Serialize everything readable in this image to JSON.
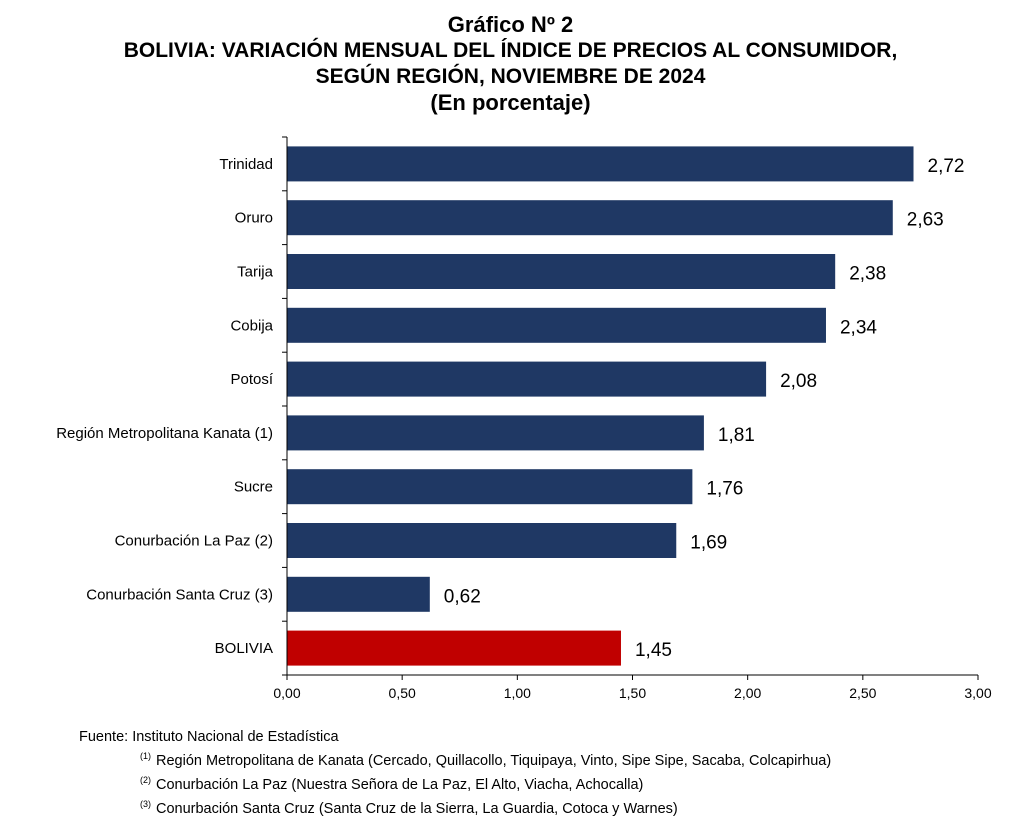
{
  "title": {
    "line1": "Gráfico Nº 2",
    "line2": "BOLIVIA: VARIACIÓN MENSUAL DEL ÍNDICE DE PRECIOS AL CONSUMIDOR,",
    "line3": "SEGÚN REGIÓN, NOVIEMBRE DE 2024",
    "line4": "(En porcentaje)"
  },
  "colors": {
    "bar": "#1f3864",
    "highlight": "#c00000"
  },
  "chart_data": {
    "type": "bar",
    "orientation": "horizontal",
    "categories": [
      "Trinidad",
      "Oruro",
      "Tarija",
      "Cobija",
      "Potosí",
      "Región Metropolitana Kanata (1)",
      "Sucre",
      "Conurbación La Paz (2)",
      "Conurbación Santa Cruz (3)",
      "BOLIVIA"
    ],
    "values": [
      2.72,
      2.63,
      2.38,
      2.34,
      2.08,
      1.81,
      1.76,
      1.69,
      0.62,
      1.45
    ],
    "value_labels": [
      "2,72",
      "2,63",
      "2,38",
      "2,34",
      "2,08",
      "1,81",
      "1,76",
      "1,69",
      "0,62",
      "1,45"
    ],
    "highlight_category": "BOLIVIA",
    "xlim": [
      0,
      3
    ],
    "x_ticks": [
      0,
      0.5,
      1,
      1.5,
      2,
      2.5,
      3
    ],
    "x_tick_labels": [
      "0,00",
      "0,50",
      "1,00",
      "1,50",
      "2,00",
      "2,50",
      "3,00"
    ],
    "grid": false,
    "legend": "none"
  },
  "footnotes": {
    "source": "Fuente: Instituto Nacional de Estadística",
    "notes": [
      {
        "mark": "(1)",
        "text": "Región Metropolitana de Kanata (Cercado, Quillacollo, Tiquipaya, Vinto, Sipe Sipe, Sacaba, Colcapirhua)"
      },
      {
        "mark": "(2)",
        "text": "Conurbación La Paz (Nuestra Señora de La Paz, El Alto, Viacha, Achocalla)"
      },
      {
        "mark": "(3)",
        "text": "Conurbación Santa Cruz (Santa Cruz de la Sierra, La Guardia, Cotoca y Warnes)"
      }
    ]
  }
}
